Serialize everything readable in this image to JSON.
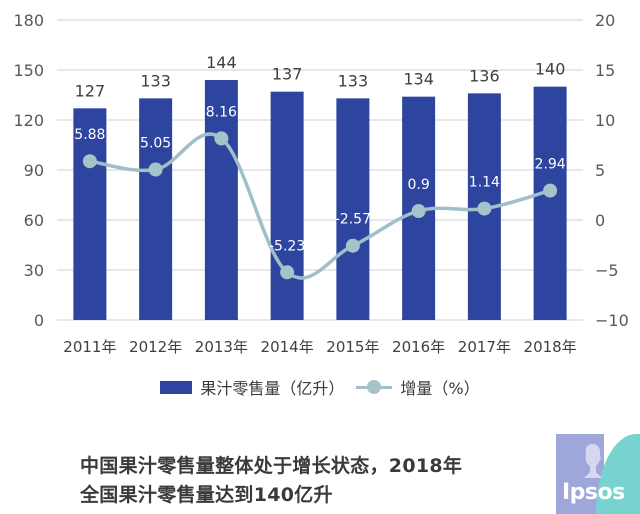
{
  "chart_data": {
    "type": "bar+line",
    "title": "",
    "categories": [
      "2011年",
      "2012年",
      "2013年",
      "2014年",
      "2015年",
      "2016年",
      "2017年",
      "2018年"
    ],
    "series": [
      {
        "name": "果汁零售量（亿升）",
        "type": "bar",
        "axis": "left",
        "color": "#2E45A0",
        "values": [
          127,
          133,
          144,
          137,
          133,
          134,
          136,
          140
        ]
      },
      {
        "name": "增量（%）",
        "type": "line",
        "axis": "right",
        "color": "#A7C3CA",
        "values": [
          5.88,
          5.05,
          8.16,
          -5.23,
          -2.57,
          0.9,
          1.14,
          2.94
        ]
      }
    ],
    "bar_labels": [
      "127",
      "133",
      "144",
      "137",
      "133",
      "134",
      "136",
      "140"
    ],
    "line_labels": [
      "5.88",
      "5.05",
      "8.16",
      "-5.23",
      "-2.57",
      "0.9",
      "1.14",
      "2.94"
    ],
    "left_axis": {
      "ylim": [
        0,
        180
      ],
      "ticks": [
        "0",
        "30",
        "60",
        "90",
        "120",
        "150",
        "180"
      ]
    },
    "right_axis": {
      "ylim": [
        -10,
        20
      ],
      "ticks": [
        "-10",
        "-5",
        "0",
        "5",
        "10",
        "15",
        "20"
      ]
    },
    "grid": true,
    "legend_position": "bottom"
  },
  "legend": {
    "bar_label": "果汁零售量（亿升）",
    "line_label": "增量（%）"
  },
  "caption": {
    "line1": "中国果汁零售量整体处于增长状态，2018年",
    "line2": "全国果汁零售量达到140亿升"
  },
  "logo": {
    "text": "Ipsos"
  },
  "colors": {
    "bar": "#2E45A0",
    "line": "#A7C3CA",
    "grid": "#D9D9D9",
    "axis_text": "#595959"
  }
}
